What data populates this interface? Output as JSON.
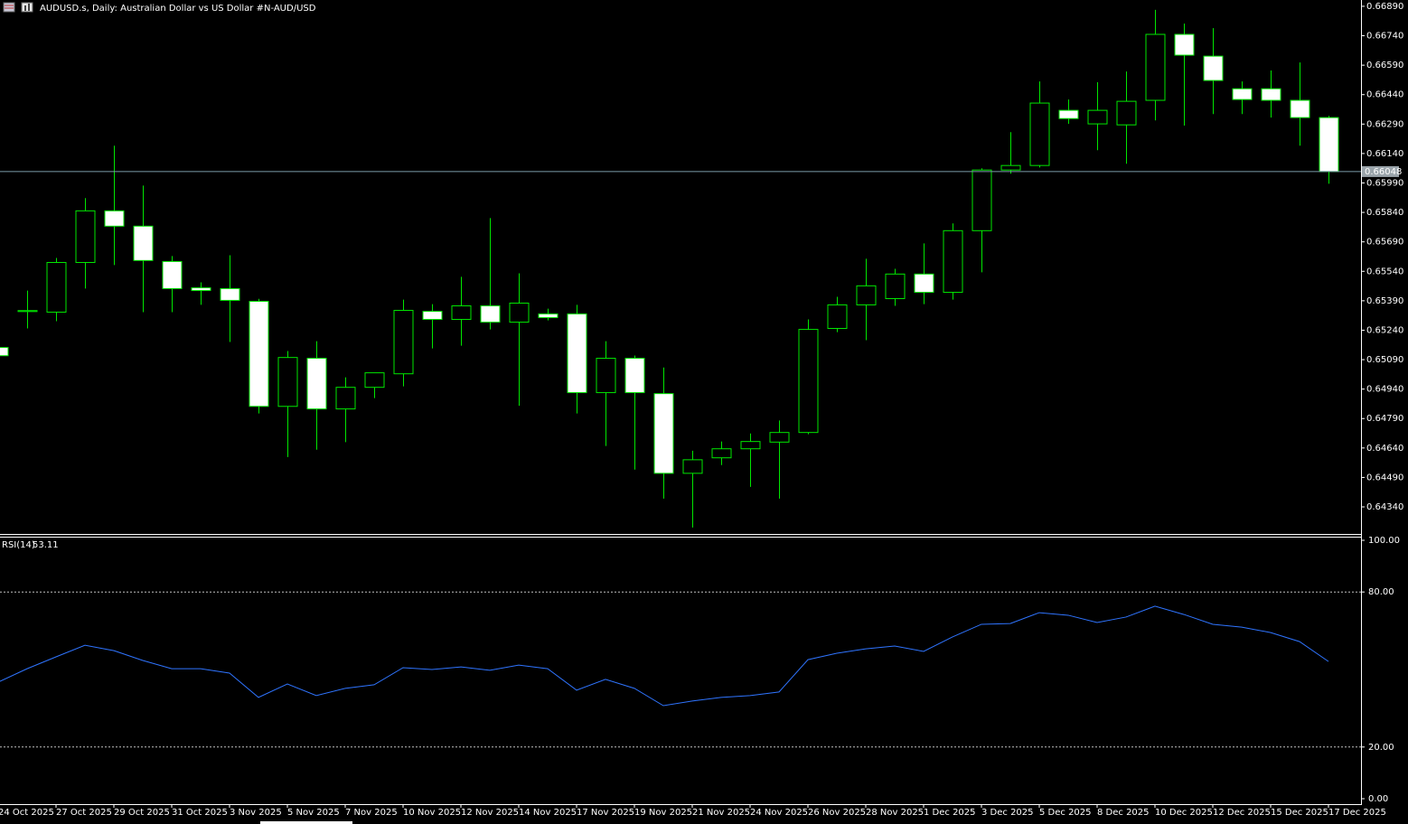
{
  "chart_data": [
    {
      "type": "candlestick",
      "title": "AUDUSD.s, Daily:  Australian Dollar vs US Dollar #N-AUD/USD",
      "categories": [
        "24 Oct 2025",
        null,
        "27 Oct 2025",
        null,
        "29 Oct 2025",
        null,
        "31 Oct 2025",
        null,
        "3 Nov 2025",
        null,
        "5 Nov 2025",
        null,
        "7 Nov 2025",
        null,
        "10 Nov 2025",
        null,
        "12 Nov 2025",
        null,
        "14 Nov 2025",
        null,
        "17 Nov 2025",
        null,
        "19 Nov 2025",
        null,
        "21 Nov 2025",
        null,
        "24 Nov 2025",
        null,
        "26 Nov 2025",
        null,
        "28 Nov 2025",
        null,
        "1 Dec 2025",
        null,
        "3 Dec 2025",
        null,
        "5 Dec 2025",
        null,
        "8 Dec 2025",
        null,
        "10 Dec 2025",
        null,
        "12 Dec 2025",
        null,
        "15 Dec 2025",
        null,
        "17 Dec 2025"
      ],
      "open": [
        0.65152,
        0.65335,
        0.65332,
        0.65585,
        0.65848,
        0.6577,
        0.6559,
        0.65456,
        0.65452,
        0.65387,
        0.64852,
        0.65097,
        0.64839,
        0.64949,
        0.65018,
        0.65336,
        0.65295,
        0.65364,
        0.65281,
        0.65323,
        0.65323,
        0.64922,
        0.65097,
        0.64917,
        0.64511,
        0.6459,
        0.64636,
        0.6467,
        0.64719,
        0.65249,
        0.65369,
        0.65401,
        0.65526,
        0.65433,
        0.65747,
        0.66056,
        0.66079,
        0.6636,
        0.66291,
        0.66286,
        0.66411,
        0.66747,
        0.66636,
        0.6647,
        0.6647,
        0.66411,
        0.66323
      ],
      "high": [
        0.6516,
        0.65442,
        0.65608,
        0.65913,
        0.6618,
        0.65977,
        0.65618,
        0.65484,
        0.65622,
        0.654,
        0.65134,
        0.65184,
        0.65,
        0.65023,
        0.65396,
        0.65373,
        0.65512,
        0.65811,
        0.6553,
        0.6535,
        0.65369,
        0.65184,
        0.65111,
        0.6505,
        0.64626,
        0.64673,
        0.64714,
        0.6478,
        0.65295,
        0.6541,
        0.65604,
        0.65553,
        0.65682,
        0.65784,
        0.66065,
        0.66249,
        0.66507,
        0.66415,
        0.66503,
        0.66558,
        0.66872,
        0.66802,
        0.66779,
        0.66507,
        0.66563,
        0.66604,
        0.66332
      ],
      "low": [
        0.651,
        0.65249,
        0.65286,
        0.65452,
        0.65572,
        0.65332,
        0.65332,
        0.65369,
        0.6518,
        0.64816,
        0.64594,
        0.64631,
        0.6467,
        0.64894,
        0.64954,
        0.65147,
        0.65161,
        0.65244,
        0.64855,
        0.6529,
        0.64816,
        0.6465,
        0.6453,
        0.64382,
        0.64235,
        0.64553,
        0.64442,
        0.64382,
        0.6471,
        0.6523,
        0.65189,
        0.65364,
        0.65373,
        0.65396,
        0.65535,
        0.66037,
        0.66069,
        0.66291,
        0.66157,
        0.66088,
        0.66309,
        0.66282,
        0.66341,
        0.66341,
        0.66323,
        0.6618,
        0.65986
      ],
      "close": [
        0.6511,
        0.6534,
        0.65585,
        0.65848,
        0.6577,
        0.65595,
        0.65452,
        0.65442,
        0.65392,
        0.64852,
        0.65101,
        0.64839,
        0.64949,
        0.65023,
        0.65341,
        0.65295,
        0.65364,
        0.65281,
        0.65378,
        0.65304,
        0.64922,
        0.65097,
        0.64922,
        0.64511,
        0.6458,
        0.64636,
        0.64673,
        0.64719,
        0.65244,
        0.65369,
        0.65466,
        0.65526,
        0.65433,
        0.65747,
        0.66056,
        0.66079,
        0.66397,
        0.66318,
        0.6636,
        0.66406,
        0.66747,
        0.66641,
        0.66512,
        0.66415,
        0.66411,
        0.66323,
        0.66048
      ],
      "up_color": "#000000",
      "down_color": "#ffffff",
      "outline_color": "#00e600",
      "last_price": 0.66048,
      "ylim": [
        0.64202,
        0.66922
      ],
      "yticks": [
        {
          "value": 0.6689,
          "label": "0.66890"
        },
        {
          "value": 0.6674,
          "label": "0.66740"
        },
        {
          "value": 0.6659,
          "label": "0.66590"
        },
        {
          "value": 0.6644,
          "label": "0.66440"
        },
        {
          "value": 0.6629,
          "label": "0.66290"
        },
        {
          "value": 0.6614,
          "label": "0.66140"
        },
        {
          "value": 0.6599,
          "label": "0.65990"
        },
        {
          "value": 0.6584,
          "label": "0.65840"
        },
        {
          "value": 0.6569,
          "label": "0.65690"
        },
        {
          "value": 0.6554,
          "label": "0.65540"
        },
        {
          "value": 0.6539,
          "label": "0.65390"
        },
        {
          "value": 0.6524,
          "label": "0.65240"
        },
        {
          "value": 0.6509,
          "label": "0.65090"
        },
        {
          "value": 0.6494,
          "label": "0.64940"
        },
        {
          "value": 0.6479,
          "label": "0.64790"
        },
        {
          "value": 0.6464,
          "label": "0.64640"
        },
        {
          "value": 0.6449,
          "label": "0.64490"
        },
        {
          "value": 0.6434,
          "label": "0.64340"
        }
      ]
    },
    {
      "type": "line",
      "title": "RSI(14)",
      "series": [
        {
          "name": "RSI(14)",
          "color": "#2f74ff",
          "values": [
            45.1,
            50.3,
            54.9,
            59.4,
            57.3,
            53.5,
            50.3,
            50.3,
            48.6,
            39.2,
            44.4,
            39.9,
            42.7,
            44.1,
            50.7,
            50.0,
            51.0,
            49.7,
            51.7,
            50.3,
            42.0,
            46.2,
            42.7,
            36.0,
            37.8,
            39.2,
            39.9,
            41.3,
            53.8,
            56.3,
            58.0,
            59.1,
            57.0,
            62.6,
            67.5,
            67.8,
            72.0,
            71.0,
            68.2,
            70.3,
            74.5,
            71.3,
            67.5,
            66.4,
            64.3,
            60.8,
            53.11
          ]
        }
      ],
      "levels": [
        20,
        80
      ],
      "ylim": [
        -2.1,
        101.4
      ],
      "yticks": [
        {
          "value": 100,
          "label": "100.00"
        },
        {
          "value": 80,
          "label": "80.00"
        },
        {
          "value": 20,
          "label": "20.00"
        },
        {
          "value": 0,
          "label": "0.00"
        }
      ]
    }
  ]
}
